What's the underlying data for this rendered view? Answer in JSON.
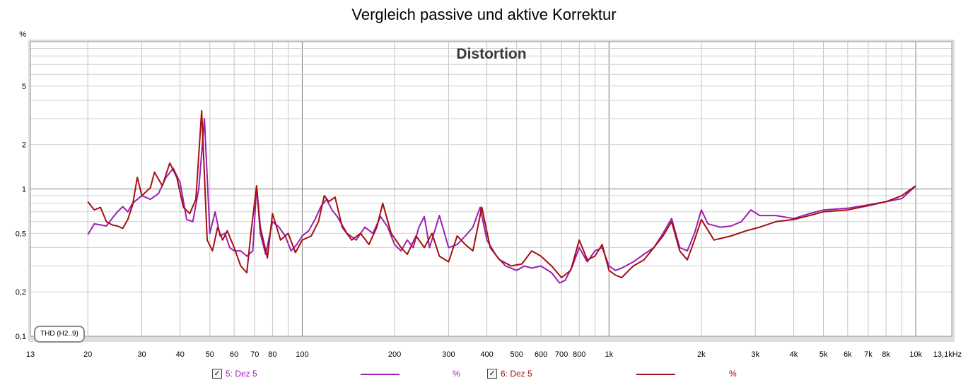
{
  "title": "Vergleich passive und aktive Korrektur",
  "chart_data": {
    "type": "line",
    "title": "Vergleich passive und aktive Korrektur",
    "plot_label": "Distortion",
    "xscale": "log",
    "yscale": "log",
    "xlim": [
      13,
      13100
    ],
    "ylim": [
      0.1,
      10
    ],
    "y_unit": "%",
    "x_unit_label": "13,1kHz",
    "grid": true,
    "x_ticks": [
      {
        "v": 13,
        "label": "13"
      },
      {
        "v": 20,
        "label": "20"
      },
      {
        "v": 30,
        "label": "30"
      },
      {
        "v": 40,
        "label": "40"
      },
      {
        "v": 50,
        "label": "50"
      },
      {
        "v": 60,
        "label": "60"
      },
      {
        "v": 70,
        "label": "70"
      },
      {
        "v": 80,
        "label": "80"
      },
      {
        "v": 100,
        "label": "100"
      },
      {
        "v": 200,
        "label": "200"
      },
      {
        "v": 300,
        "label": "300"
      },
      {
        "v": 400,
        "label": "400"
      },
      {
        "v": 500,
        "label": "500"
      },
      {
        "v": 600,
        "label": "600"
      },
      {
        "v": 700,
        "label": "700"
      },
      {
        "v": 800,
        "label": "800"
      },
      {
        "v": 1000,
        "label": "1k"
      },
      {
        "v": 2000,
        "label": "2k"
      },
      {
        "v": 3000,
        "label": "3k"
      },
      {
        "v": 4000,
        "label": "4k"
      },
      {
        "v": 5000,
        "label": "5k"
      },
      {
        "v": 6000,
        "label": "6k"
      },
      {
        "v": 7000,
        "label": "7k"
      },
      {
        "v": 8000,
        "label": "8k"
      },
      {
        "v": 10000,
        "label": "10k"
      },
      {
        "v": 13100,
        "label": "13,1kHz"
      }
    ],
    "y_ticks": [
      {
        "v": 0.1,
        "label": "0,1"
      },
      {
        "v": 0.2,
        "label": "0,2"
      },
      {
        "v": 0.5,
        "label": "0,5"
      },
      {
        "v": 1,
        "label": "1"
      },
      {
        "v": 2,
        "label": "2"
      },
      {
        "v": 5,
        "label": "5"
      }
    ],
    "series": [
      {
        "name": "5: Dez 5",
        "color": "#9b1fb5",
        "points": [
          [
            20,
            0.49
          ],
          [
            21,
            0.58
          ],
          [
            22,
            0.57
          ],
          [
            23,
            0.56
          ],
          [
            24,
            0.63
          ],
          [
            25,
            0.7
          ],
          [
            26,
            0.76
          ],
          [
            27,
            0.7
          ],
          [
            28,
            0.8
          ],
          [
            29,
            0.85
          ],
          [
            30,
            0.9
          ],
          [
            32,
            0.85
          ],
          [
            34,
            0.93
          ],
          [
            36,
            1.2
          ],
          [
            38,
            1.38
          ],
          [
            40,
            1.1
          ],
          [
            42,
            0.62
          ],
          [
            44,
            0.6
          ],
          [
            46,
            1.0
          ],
          [
            48,
            3.0
          ],
          [
            50,
            0.5
          ],
          [
            52,
            0.7
          ],
          [
            54,
            0.48
          ],
          [
            56,
            0.5
          ],
          [
            58,
            0.4
          ],
          [
            60,
            0.38
          ],
          [
            63,
            0.38
          ],
          [
            66,
            0.35
          ],
          [
            69,
            0.38
          ],
          [
            71,
            1.05
          ],
          [
            73,
            0.5
          ],
          [
            76,
            0.36
          ],
          [
            80,
            0.6
          ],
          [
            84,
            0.55
          ],
          [
            88,
            0.48
          ],
          [
            92,
            0.38
          ],
          [
            96,
            0.42
          ],
          [
            100,
            0.48
          ],
          [
            105,
            0.52
          ],
          [
            110,
            0.62
          ],
          [
            115,
            0.76
          ],
          [
            120,
            0.85
          ],
          [
            125,
            0.72
          ],
          [
            130,
            0.65
          ],
          [
            140,
            0.5
          ],
          [
            150,
            0.45
          ],
          [
            160,
            0.55
          ],
          [
            170,
            0.5
          ],
          [
            180,
            0.65
          ],
          [
            190,
            0.55
          ],
          [
            200,
            0.42
          ],
          [
            210,
            0.38
          ],
          [
            220,
            0.45
          ],
          [
            230,
            0.4
          ],
          [
            240,
            0.55
          ],
          [
            250,
            0.65
          ],
          [
            260,
            0.4
          ],
          [
            280,
            0.66
          ],
          [
            300,
            0.4
          ],
          [
            320,
            0.42
          ],
          [
            340,
            0.48
          ],
          [
            360,
            0.55
          ],
          [
            380,
            0.75
          ],
          [
            400,
            0.45
          ],
          [
            430,
            0.35
          ],
          [
            460,
            0.3
          ],
          [
            500,
            0.28
          ],
          [
            530,
            0.3
          ],
          [
            560,
            0.29
          ],
          [
            600,
            0.3
          ],
          [
            650,
            0.27
          ],
          [
            690,
            0.23
          ],
          [
            720,
            0.24
          ],
          [
            760,
            0.3
          ],
          [
            800,
            0.4
          ],
          [
            850,
            0.32
          ],
          [
            900,
            0.38
          ],
          [
            950,
            0.4
          ],
          [
            1000,
            0.3
          ],
          [
            1050,
            0.28
          ],
          [
            1100,
            0.29
          ],
          [
            1200,
            0.32
          ],
          [
            1300,
            0.36
          ],
          [
            1400,
            0.4
          ],
          [
            1500,
            0.5
          ],
          [
            1600,
            0.63
          ],
          [
            1700,
            0.4
          ],
          [
            1800,
            0.38
          ],
          [
            1900,
            0.5
          ],
          [
            2000,
            0.72
          ],
          [
            2100,
            0.58
          ],
          [
            2300,
            0.55
          ],
          [
            2500,
            0.56
          ],
          [
            2700,
            0.6
          ],
          [
            2900,
            0.72
          ],
          [
            3100,
            0.66
          ],
          [
            3500,
            0.66
          ],
          [
            4000,
            0.63
          ],
          [
            4500,
            0.68
          ],
          [
            5000,
            0.72
          ],
          [
            6000,
            0.74
          ],
          [
            7000,
            0.78
          ],
          [
            8000,
            0.82
          ],
          [
            9000,
            0.86
          ],
          [
            10000,
            1.05
          ]
        ]
      },
      {
        "name": "6: Dez 5",
        "color": "#a50f0f",
        "points": [
          [
            20,
            0.82
          ],
          [
            21,
            0.72
          ],
          [
            22,
            0.75
          ],
          [
            23,
            0.6
          ],
          [
            24,
            0.57
          ],
          [
            25,
            0.56
          ],
          [
            26,
            0.54
          ],
          [
            27,
            0.62
          ],
          [
            28,
            0.78
          ],
          [
            29,
            1.2
          ],
          [
            30,
            0.9
          ],
          [
            32,
            1.02
          ],
          [
            33,
            1.3
          ],
          [
            35,
            1.05
          ],
          [
            37,
            1.5
          ],
          [
            39,
            1.2
          ],
          [
            41,
            0.75
          ],
          [
            43,
            0.68
          ],
          [
            45,
            0.85
          ],
          [
            47,
            3.4
          ],
          [
            49,
            0.45
          ],
          [
            51,
            0.38
          ],
          [
            53,
            0.55
          ],
          [
            55,
            0.45
          ],
          [
            57,
            0.52
          ],
          [
            60,
            0.4
          ],
          [
            63,
            0.3
          ],
          [
            66,
            0.27
          ],
          [
            68,
            0.5
          ],
          [
            71,
            1.05
          ],
          [
            73,
            0.55
          ],
          [
            77,
            0.34
          ],
          [
            80,
            0.68
          ],
          [
            85,
            0.45
          ],
          [
            90,
            0.5
          ],
          [
            95,
            0.37
          ],
          [
            100,
            0.45
          ],
          [
            107,
            0.48
          ],
          [
            113,
            0.6
          ],
          [
            118,
            0.9
          ],
          [
            122,
            0.82
          ],
          [
            128,
            0.88
          ],
          [
            135,
            0.55
          ],
          [
            145,
            0.45
          ],
          [
            155,
            0.5
          ],
          [
            165,
            0.42
          ],
          [
            175,
            0.55
          ],
          [
            183,
            0.8
          ],
          [
            195,
            0.5
          ],
          [
            210,
            0.4
          ],
          [
            220,
            0.36
          ],
          [
            235,
            0.48
          ],
          [
            250,
            0.4
          ],
          [
            265,
            0.5
          ],
          [
            280,
            0.35
          ],
          [
            300,
            0.32
          ],
          [
            320,
            0.48
          ],
          [
            340,
            0.42
          ],
          [
            360,
            0.38
          ],
          [
            385,
            0.75
          ],
          [
            410,
            0.4
          ],
          [
            440,
            0.33
          ],
          [
            480,
            0.3
          ],
          [
            520,
            0.31
          ],
          [
            560,
            0.38
          ],
          [
            600,
            0.35
          ],
          [
            650,
            0.3
          ],
          [
            700,
            0.25
          ],
          [
            750,
            0.28
          ],
          [
            800,
            0.45
          ],
          [
            850,
            0.33
          ],
          [
            900,
            0.35
          ],
          [
            950,
            0.42
          ],
          [
            1000,
            0.28
          ],
          [
            1050,
            0.26
          ],
          [
            1100,
            0.25
          ],
          [
            1200,
            0.3
          ],
          [
            1300,
            0.33
          ],
          [
            1400,
            0.4
          ],
          [
            1500,
            0.48
          ],
          [
            1600,
            0.6
          ],
          [
            1700,
            0.38
          ],
          [
            1800,
            0.33
          ],
          [
            1900,
            0.45
          ],
          [
            2000,
            0.62
          ],
          [
            2200,
            0.45
          ],
          [
            2500,
            0.48
          ],
          [
            2800,
            0.52
          ],
          [
            3100,
            0.55
          ],
          [
            3500,
            0.6
          ],
          [
            4000,
            0.62
          ],
          [
            4500,
            0.66
          ],
          [
            5000,
            0.7
          ],
          [
            6000,
            0.72
          ],
          [
            7000,
            0.77
          ],
          [
            8000,
            0.82
          ],
          [
            9000,
            0.9
          ],
          [
            10000,
            1.05
          ]
        ]
      }
    ]
  },
  "thd_badge": "THD (H2..9)",
  "legend": [
    {
      "checked": "✓",
      "label": "5: Dez 5",
      "unit": "%",
      "color": "#9b1fb5"
    },
    {
      "checked": "✓",
      "label": "6: Dez 5",
      "unit": "%",
      "color": "#a50f0f"
    }
  ]
}
